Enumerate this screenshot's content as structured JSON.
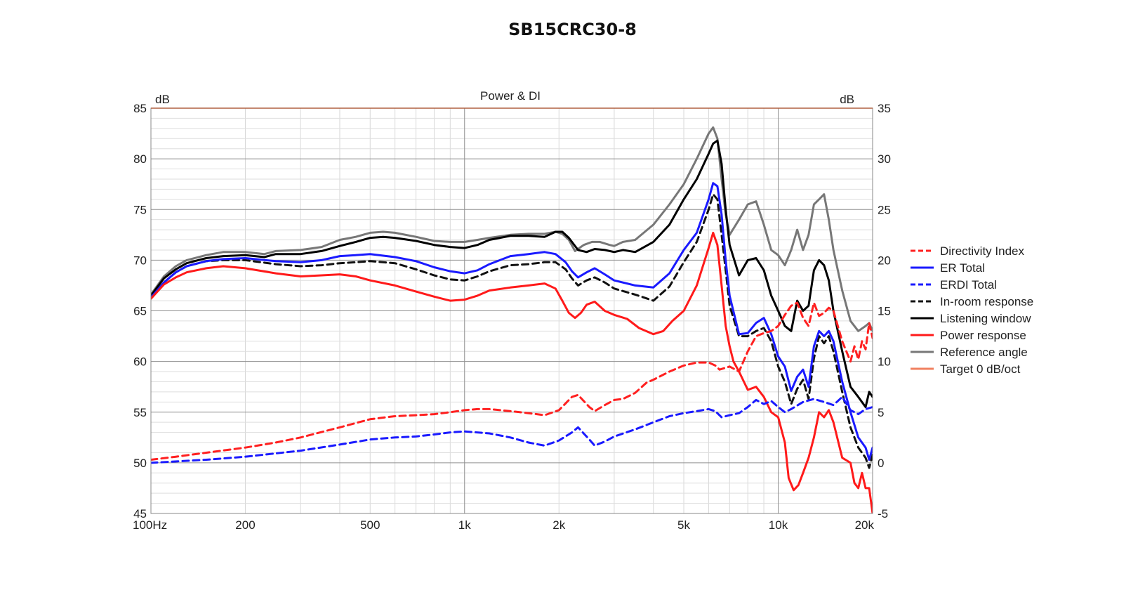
{
  "chart_data": {
    "type": "line",
    "title": "SB15CRC30-8",
    "subtitle": "Power & DI",
    "x_scale": "log",
    "xlim": [
      100,
      20000
    ],
    "x_tick_labels": [
      {
        "v": 100,
        "t": "100Hz"
      },
      {
        "v": 200,
        "t": "200"
      },
      {
        "v": 500,
        "t": "500"
      },
      {
        "v": 1000,
        "t": "1k"
      },
      {
        "v": 2000,
        "t": "2k"
      },
      {
        "v": 5000,
        "t": "5k"
      },
      {
        "v": 10000,
        "t": "10k"
      },
      {
        "v": 20000,
        "t": "20k"
      }
    ],
    "y_left": {
      "unit": "dB",
      "lim": [
        45,
        85
      ],
      "ticks": [
        45,
        50,
        55,
        60,
        65,
        70,
        75,
        80,
        85
      ]
    },
    "y_right": {
      "unit": "dB",
      "lim": [
        -5,
        35
      ],
      "ticks": [
        -5,
        0,
        5,
        10,
        15,
        20,
        25,
        30,
        35
      ]
    },
    "grid": true,
    "legend_position": "right",
    "series": [
      {
        "name": "Directivity Index",
        "color": "#ff2020",
        "dash": true,
        "axis": "right",
        "x": [
          100,
          120,
          150,
          200,
          250,
          300,
          400,
          500,
          600,
          700,
          800,
          900,
          1000,
          1100,
          1200,
          1300,
          1500,
          1700,
          1800,
          2000,
          2200,
          2300,
          2500,
          2600,
          2800,
          3000,
          3200,
          3500,
          3800,
          4000,
          4500,
          5000,
          5500,
          6000,
          6300,
          6500,
          7000,
          7500,
          8000,
          8500,
          9000,
          9500,
          10000,
          10500,
          11000,
          11500,
          12000,
          12500,
          13000,
          13500,
          14000,
          14500,
          15000,
          16000,
          17000,
          17500,
          18000,
          18500,
          19000,
          19500,
          20000
        ],
        "y": [
          0.3,
          0.6,
          1.0,
          1.5,
          2.0,
          2.5,
          3.5,
          4.3,
          4.6,
          4.7,
          4.8,
          5.0,
          5.2,
          5.3,
          5.3,
          5.2,
          5.0,
          4.8,
          4.7,
          5.2,
          6.5,
          6.7,
          5.5,
          5.1,
          5.7,
          6.2,
          6.3,
          6.9,
          7.9,
          8.2,
          9.0,
          9.6,
          9.9,
          9.9,
          9.6,
          9.2,
          9.5,
          9.0,
          11.0,
          12.5,
          12.8,
          13.0,
          13.5,
          14.6,
          15.5,
          15.8,
          14.3,
          13.5,
          15.8,
          14.5,
          14.8,
          15.3,
          15.0,
          12.0,
          10.0,
          11.5,
          10.2,
          12.0,
          11.2,
          13.8,
          12.3
        ]
      },
      {
        "name": "ER Total",
        "color": "#1a1aff",
        "dash": false,
        "axis": "left",
        "x": [
          100,
          110,
          120,
          130,
          150,
          170,
          200,
          250,
          300,
          350,
          400,
          450,
          500,
          600,
          700,
          800,
          900,
          1000,
          1100,
          1200,
          1400,
          1600,
          1800,
          1950,
          2100,
          2200,
          2300,
          2450,
          2600,
          2800,
          3000,
          3500,
          4000,
          4500,
          5000,
          5500,
          6000,
          6200,
          6400,
          6600,
          6800,
          7000,
          7500,
          8000,
          8500,
          9000,
          9500,
          10000,
          10500,
          11000,
          11500,
          12000,
          12500,
          13000,
          13500,
          14000,
          14500,
          15000,
          16000,
          17000,
          18000,
          19000,
          19500,
          20000
        ],
        "y": [
          66.3,
          67.8,
          68.8,
          69.4,
          69.9,
          70.1,
          70.2,
          69.9,
          69.8,
          70.0,
          70.4,
          70.5,
          70.6,
          70.3,
          69.9,
          69.3,
          68.9,
          68.7,
          69.0,
          69.6,
          70.4,
          70.6,
          70.8,
          70.6,
          69.8,
          68.9,
          68.3,
          68.8,
          69.2,
          68.6,
          68.0,
          67.5,
          67.3,
          68.7,
          71.0,
          72.7,
          76.0,
          77.6,
          77.3,
          74.5,
          70.0,
          66.5,
          62.7,
          62.8,
          63.8,
          64.3,
          62.7,
          60.5,
          59.5,
          57.1,
          58.5,
          59.2,
          57.5,
          61.5,
          63.0,
          62.5,
          63.0,
          62.0,
          58.0,
          55.0,
          52.5,
          51.5,
          50.3,
          51.5
        ]
      },
      {
        "name": "ERDI Total",
        "color": "#1a1aff",
        "dash": true,
        "axis": "right",
        "x": [
          100,
          150,
          200,
          300,
          400,
          500,
          600,
          700,
          800,
          900,
          1000,
          1200,
          1400,
          1600,
          1800,
          2000,
          2200,
          2300,
          2500,
          2600,
          2800,
          3000,
          3500,
          4000,
          4500,
          5000,
          5500,
          6000,
          6300,
          6600,
          7000,
          7500,
          8000,
          8500,
          9000,
          9500,
          10000,
          10500,
          11000,
          12000,
          13000,
          14000,
          15000,
          16000,
          17000,
          18000,
          19000,
          20000
        ],
        "y": [
          0.0,
          0.3,
          0.6,
          1.2,
          1.8,
          2.3,
          2.5,
          2.6,
          2.8,
          3.0,
          3.1,
          2.9,
          2.5,
          2.0,
          1.7,
          2.2,
          3.0,
          3.5,
          2.3,
          1.7,
          2.1,
          2.6,
          3.3,
          4.0,
          4.6,
          4.9,
          5.1,
          5.3,
          5.1,
          4.5,
          4.7,
          4.9,
          5.5,
          6.2,
          5.8,
          6.1,
          5.5,
          5.0,
          5.3,
          6.0,
          6.3,
          6.0,
          5.7,
          6.5,
          5.2,
          4.8,
          5.3,
          5.5
        ]
      },
      {
        "name": "In-room response",
        "color": "#111111",
        "dash": true,
        "axis": "left",
        "x": [
          100,
          110,
          120,
          130,
          150,
          170,
          200,
          250,
          300,
          350,
          400,
          450,
          500,
          600,
          700,
          800,
          900,
          1000,
          1100,
          1200,
          1400,
          1600,
          1800,
          1950,
          2100,
          2200,
          2300,
          2450,
          2600,
          2800,
          3000,
          3500,
          4000,
          4500,
          5000,
          5500,
          6000,
          6200,
          6400,
          6600,
          6800,
          7000,
          7500,
          8000,
          8500,
          9000,
          9500,
          10000,
          10500,
          11000,
          11500,
          12000,
          12500,
          13000,
          13500,
          14000,
          14500,
          15000,
          16000,
          17000,
          18000,
          19000,
          19500,
          20000
        ],
        "y": [
          66.3,
          67.8,
          68.8,
          69.4,
          69.9,
          70.0,
          70.0,
          69.6,
          69.4,
          69.5,
          69.7,
          69.8,
          69.9,
          69.7,
          69.1,
          68.5,
          68.1,
          68.0,
          68.4,
          68.9,
          69.5,
          69.6,
          69.8,
          69.8,
          69.1,
          68.2,
          67.5,
          68.0,
          68.3,
          67.8,
          67.2,
          66.6,
          66.0,
          67.4,
          69.8,
          71.8,
          75.0,
          76.5,
          76.0,
          72.5,
          69.0,
          65.5,
          62.5,
          62.5,
          63.0,
          63.3,
          62.0,
          59.5,
          58.0,
          55.8,
          57.3,
          58.2,
          56.3,
          60.3,
          62.5,
          61.8,
          62.5,
          61.0,
          57.0,
          53.5,
          51.5,
          50.5,
          49.5,
          50.8
        ]
      },
      {
        "name": "Listening window",
        "color": "#000000",
        "dash": false,
        "axis": "left",
        "x": [
          100,
          110,
          120,
          130,
          150,
          170,
          200,
          230,
          250,
          300,
          350,
          400,
          450,
          500,
          550,
          600,
          700,
          800,
          900,
          1000,
          1100,
          1200,
          1400,
          1600,
          1800,
          1950,
          2050,
          2150,
          2300,
          2450,
          2600,
          2800,
          3000,
          3200,
          3500,
          4000,
          4500,
          5000,
          5500,
          6000,
          6200,
          6400,
          6600,
          6800,
          7000,
          7500,
          8000,
          8500,
          9000,
          9500,
          10000,
          10500,
          11000,
          11500,
          12000,
          12500,
          13000,
          13500,
          14000,
          14500,
          15000,
          16000,
          17000,
          18000,
          19000,
          19500,
          20000
        ],
        "y": [
          66.5,
          68.2,
          69.1,
          69.7,
          70.2,
          70.4,
          70.5,
          70.3,
          70.6,
          70.6,
          70.9,
          71.4,
          71.8,
          72.2,
          72.3,
          72.2,
          71.9,
          71.5,
          71.3,
          71.2,
          71.5,
          72.0,
          72.4,
          72.4,
          72.3,
          72.8,
          72.8,
          72.2,
          71.0,
          70.8,
          71.1,
          71.0,
          70.8,
          71.0,
          70.8,
          71.8,
          73.5,
          76.0,
          78.0,
          80.5,
          81.5,
          81.8,
          79.5,
          75.0,
          71.5,
          68.5,
          70.0,
          70.2,
          69.0,
          66.5,
          65.0,
          63.5,
          63.0,
          66.0,
          65.0,
          65.5,
          69.0,
          70.0,
          69.5,
          68.0,
          65.0,
          61.0,
          57.5,
          56.5,
          55.5,
          57.0,
          56.5
        ]
      },
      {
        "name": "Power response",
        "color": "#ff1a1a",
        "dash": false,
        "axis": "left",
        "x": [
          100,
          110,
          120,
          130,
          150,
          170,
          200,
          250,
          300,
          350,
          400,
          450,
          500,
          600,
          700,
          800,
          900,
          1000,
          1100,
          1200,
          1400,
          1600,
          1800,
          1950,
          2050,
          2150,
          2250,
          2350,
          2450,
          2600,
          2800,
          3000,
          3300,
          3600,
          4000,
          4300,
          4600,
          5000,
          5500,
          6000,
          6200,
          6400,
          6600,
          6800,
          7000,
          7200,
          7500,
          8000,
          8500,
          9000,
          9500,
          10000,
          10500,
          10800,
          11200,
          11600,
          12000,
          12500,
          13000,
          13500,
          14000,
          14500,
          15000,
          16000,
          17000,
          17500,
          18000,
          18500,
          19000,
          19500,
          20000
        ],
        "y": [
          66.2,
          67.6,
          68.3,
          68.8,
          69.2,
          69.4,
          69.2,
          68.7,
          68.4,
          68.5,
          68.6,
          68.4,
          68.0,
          67.5,
          66.9,
          66.4,
          66.0,
          66.1,
          66.5,
          67.0,
          67.3,
          67.5,
          67.7,
          67.2,
          66.0,
          64.8,
          64.3,
          64.8,
          65.6,
          65.9,
          65.0,
          64.6,
          64.2,
          63.3,
          62.7,
          63.0,
          64.0,
          65.0,
          67.5,
          71.2,
          72.7,
          71.5,
          67.5,
          63.5,
          61.5,
          60.0,
          59.0,
          57.2,
          57.5,
          56.5,
          55.0,
          54.5,
          52.0,
          48.5,
          47.3,
          47.8,
          49.0,
          50.5,
          52.5,
          55.0,
          54.5,
          55.2,
          54.0,
          50.5,
          50.0,
          48.0,
          47.5,
          49.0,
          47.5,
          47.5,
          45.0
        ]
      },
      {
        "name": "Reference angle",
        "color": "#777777",
        "dash": false,
        "axis": "left",
        "x": [
          100,
          110,
          120,
          130,
          150,
          170,
          200,
          230,
          250,
          300,
          350,
          400,
          450,
          500,
          550,
          600,
          700,
          800,
          900,
          1000,
          1100,
          1200,
          1400,
          1600,
          1800,
          1950,
          2050,
          2150,
          2250,
          2400,
          2550,
          2700,
          2900,
          3000,
          3200,
          3500,
          4000,
          4500,
          5000,
          5500,
          6000,
          6200,
          6400,
          6600,
          6800,
          7000,
          7500,
          8000,
          8500,
          9000,
          9500,
          10000,
          10500,
          11000,
          11500,
          12000,
          12500,
          13000,
          13500,
          14000,
          14500,
          15000,
          16000,
          17000,
          18000,
          19000,
          19500,
          20000
        ],
        "y": [
          66.6,
          68.4,
          69.4,
          70.0,
          70.5,
          70.8,
          70.8,
          70.6,
          70.9,
          71.0,
          71.3,
          72.0,
          72.3,
          72.7,
          72.8,
          72.7,
          72.3,
          71.9,
          71.8,
          71.8,
          72.0,
          72.2,
          72.5,
          72.6,
          72.6,
          72.8,
          72.6,
          72.0,
          70.9,
          71.5,
          71.8,
          71.8,
          71.5,
          71.4,
          71.8,
          72.0,
          73.5,
          75.5,
          77.5,
          80.0,
          82.5,
          83.1,
          82.0,
          78.0,
          74.5,
          72.5,
          74.0,
          75.5,
          75.8,
          73.5,
          71.0,
          70.5,
          69.5,
          71.0,
          73.0,
          71.0,
          72.5,
          75.5,
          76.0,
          76.5,
          74.0,
          71.0,
          67.0,
          64.0,
          63.0,
          63.5,
          63.8,
          63.0
        ]
      },
      {
        "name": "Target 0 dB/oct",
        "color": "#f08060",
        "dash": false,
        "axis": "left",
        "legend_only": true,
        "x": [],
        "y": []
      }
    ]
  }
}
